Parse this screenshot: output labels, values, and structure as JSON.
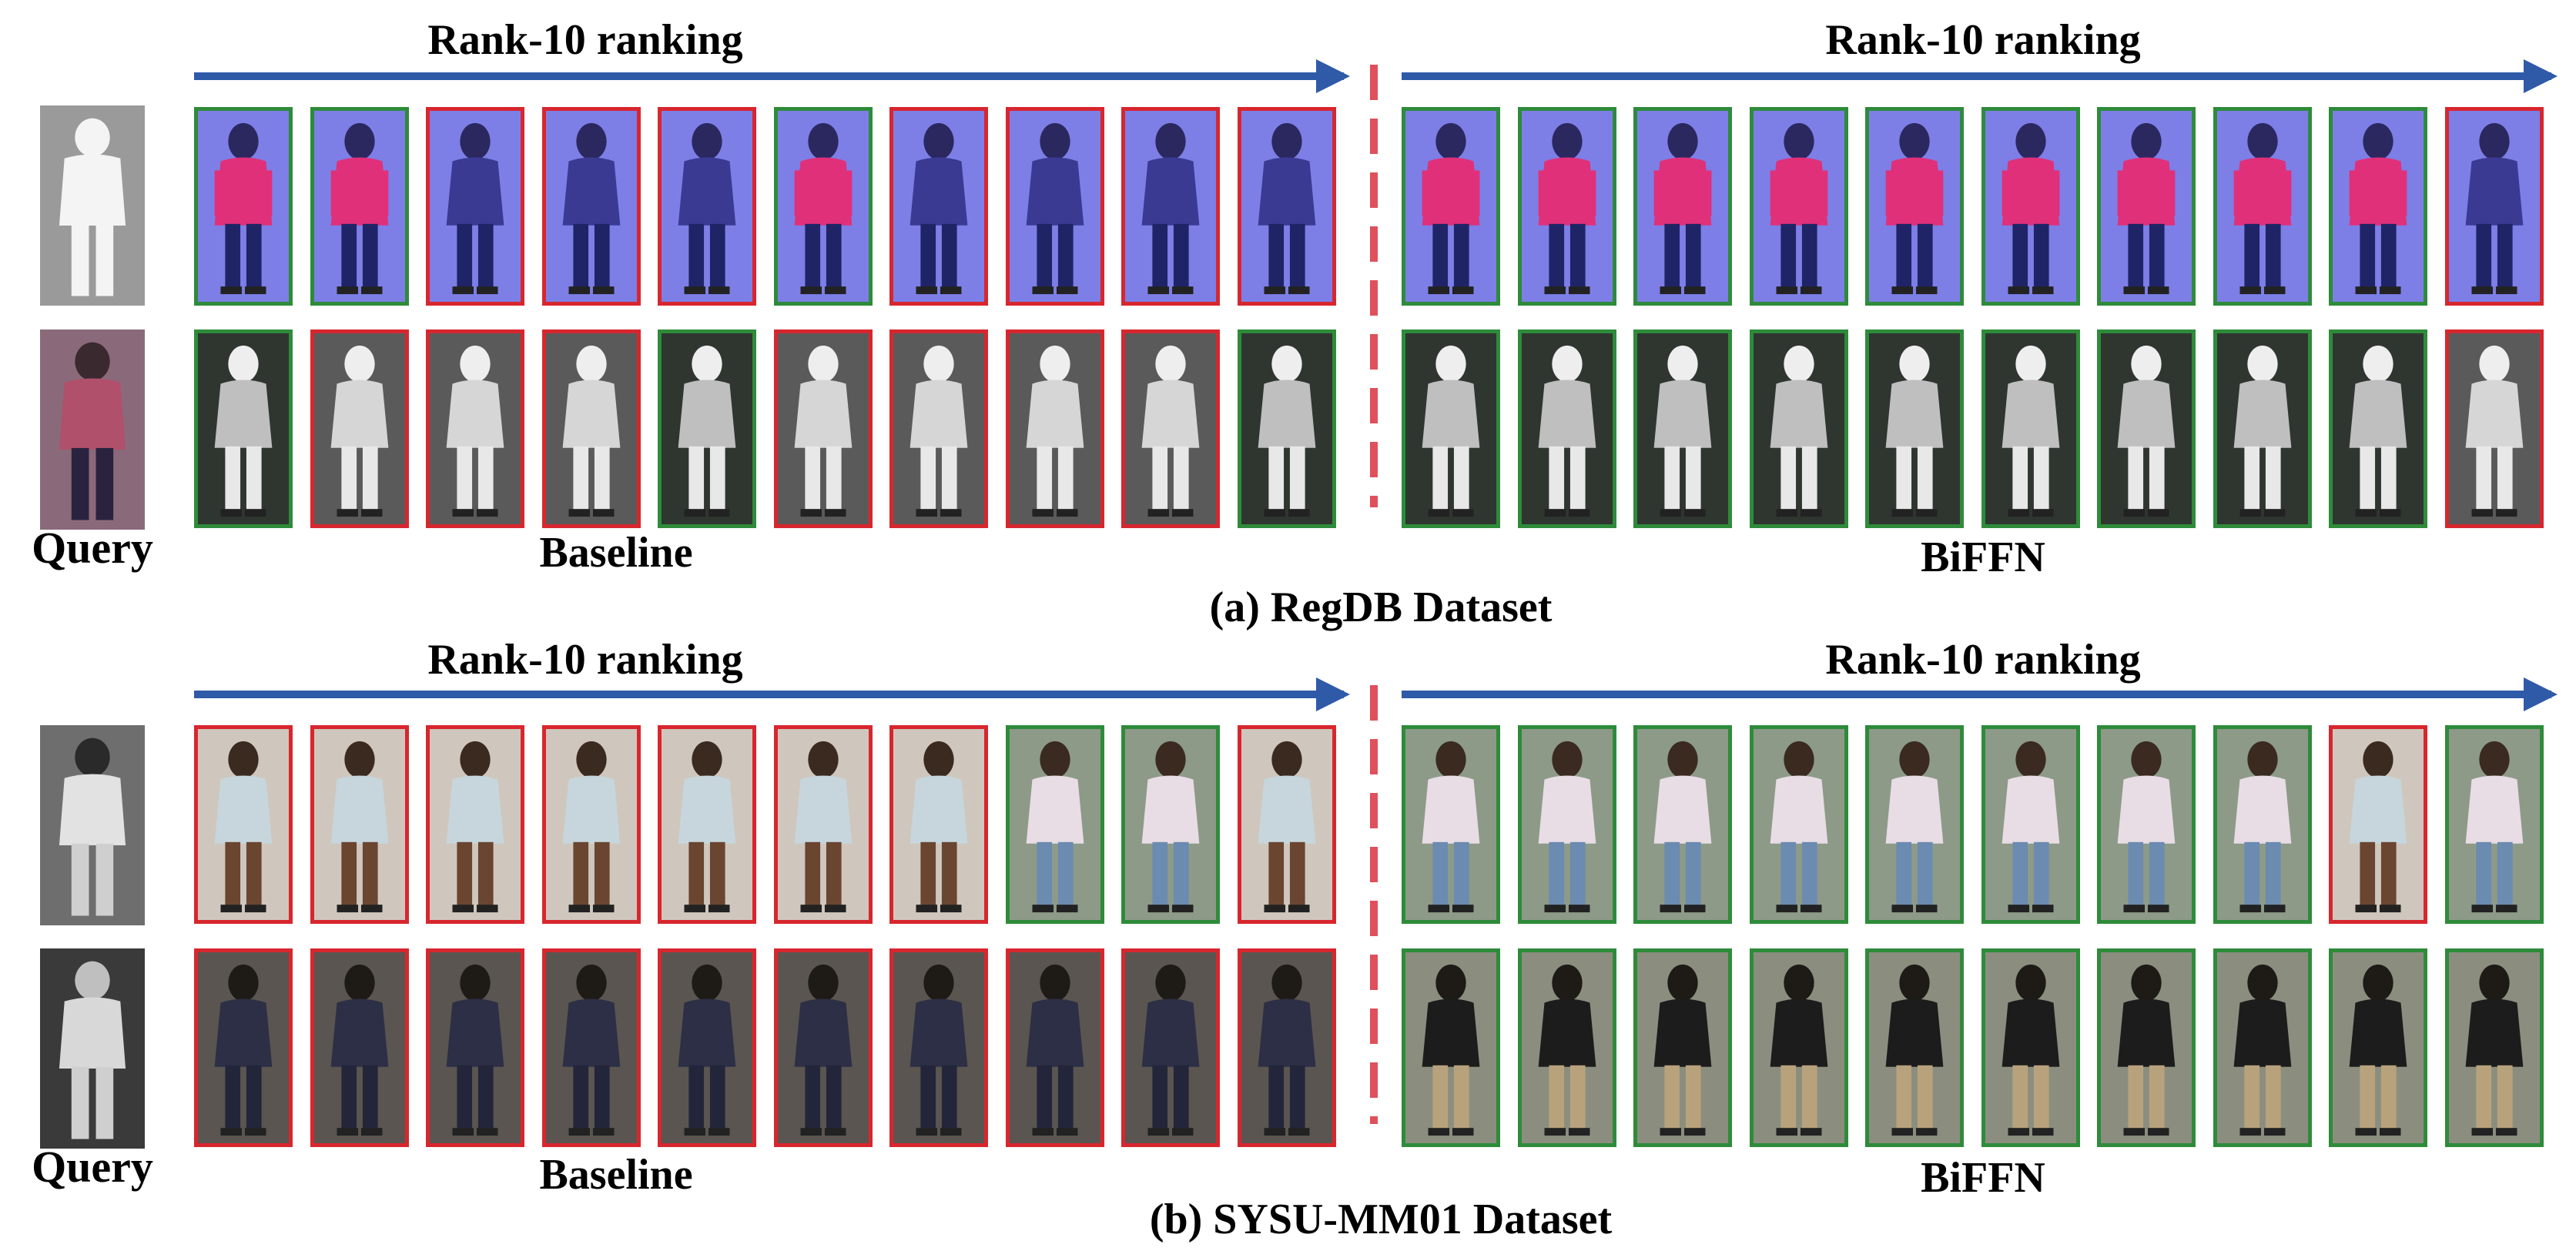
{
  "rank_label": "Rank-10 ranking",
  "query_label": "Query",
  "methods": {
    "baseline": "Baseline",
    "biffn": "BiFFN"
  },
  "captions": {
    "a": "(a) RegDB Dataset",
    "b": "(b) SYSU-MM01 Dataset"
  },
  "colors": {
    "correct": "#2e8b3a",
    "wrong": "#d8262e",
    "arrow": "#2f5aa8",
    "divider": "#e0505a"
  },
  "rows": [
    {
      "id": "regdb-visible-query",
      "query_style": "silhouette",
      "gallery_style": "visible-pink",
      "baseline": [
        "correct",
        "correct",
        "wrong",
        "wrong",
        "wrong",
        "correct",
        "wrong",
        "wrong",
        "wrong",
        "wrong"
      ],
      "biffn": [
        "correct",
        "correct",
        "correct",
        "correct",
        "correct",
        "correct",
        "correct",
        "correct",
        "correct",
        "wrong"
      ]
    },
    {
      "id": "regdb-thermal-query",
      "query_style": "visible-small",
      "gallery_style": "thermal",
      "baseline": [
        "correct",
        "wrong",
        "wrong",
        "wrong",
        "correct",
        "wrong",
        "wrong",
        "wrong",
        "wrong",
        "correct"
      ],
      "biffn": [
        "correct",
        "correct",
        "correct",
        "correct",
        "correct",
        "correct",
        "correct",
        "correct",
        "correct",
        "wrong"
      ]
    },
    {
      "id": "sysu-row-1",
      "query_style": "ir-girl",
      "gallery_style": "girl",
      "baseline": [
        "wrong",
        "wrong",
        "wrong",
        "wrong",
        "wrong",
        "wrong",
        "wrong",
        "correct",
        "correct",
        "wrong"
      ],
      "biffn": [
        "correct",
        "correct",
        "correct",
        "correct",
        "correct",
        "correct",
        "correct",
        "correct",
        "wrong",
        "correct"
      ]
    },
    {
      "id": "sysu-row-2",
      "query_style": "ir-boy",
      "gallery_style": "boy",
      "baseline": [
        "wrong",
        "wrong",
        "wrong",
        "wrong",
        "wrong",
        "wrong",
        "wrong",
        "wrong",
        "wrong",
        "wrong"
      ],
      "biffn": [
        "correct",
        "correct",
        "correct",
        "correct",
        "correct",
        "correct",
        "correct",
        "correct",
        "correct",
        "correct"
      ]
    }
  ]
}
